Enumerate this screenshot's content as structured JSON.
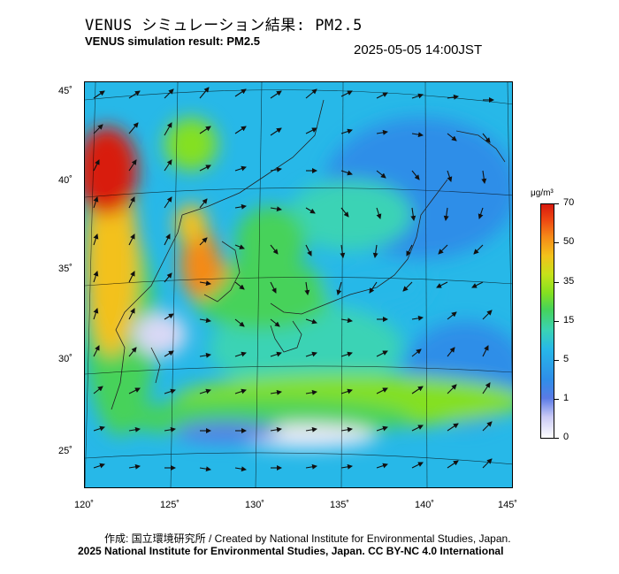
{
  "header": {
    "title_jp": "VENUS シミュレーション結果: PM2.5",
    "title_en": "VENUS simulation result: PM2.5",
    "timestamp": "2025-05-05 14:00JST"
  },
  "footer": {
    "credit_line1": "作成: 国立環境研究所 / Created by National Institute for Environmental Studies, Japan.",
    "credit_line2": "2025 National Institute for Environmental Studies, Japan. CC BY-NC 4.0 International"
  },
  "map": {
    "variable": "PM2.5",
    "lon_range": [
      120,
      145
    ],
    "lat_range": [
      23,
      46
    ],
    "lon_ticks": [
      "120˚",
      "125˚",
      "130˚",
      "135˚",
      "140˚",
      "145˚"
    ],
    "lat_ticks": [
      "45˚",
      "40˚",
      "35˚",
      "30˚",
      "25˚"
    ],
    "layers": [
      "pm25-concentration-field",
      "wind-vector-arrows",
      "coastlines",
      "graticule"
    ]
  },
  "legend": {
    "unit": "μg/m³",
    "labels": [
      "70",
      "50",
      "35",
      "15",
      "5",
      "1",
      "0"
    ],
    "colors": [
      "#ffffff",
      "#c9c9f5",
      "#5a7be6",
      "#2f8ee8",
      "#27b8e8",
      "#3ad3b5",
      "#46d25a",
      "#84e020",
      "#c6e21a",
      "#f3c11b",
      "#f58a18",
      "#ee4a12",
      "#d81a0e"
    ]
  }
}
